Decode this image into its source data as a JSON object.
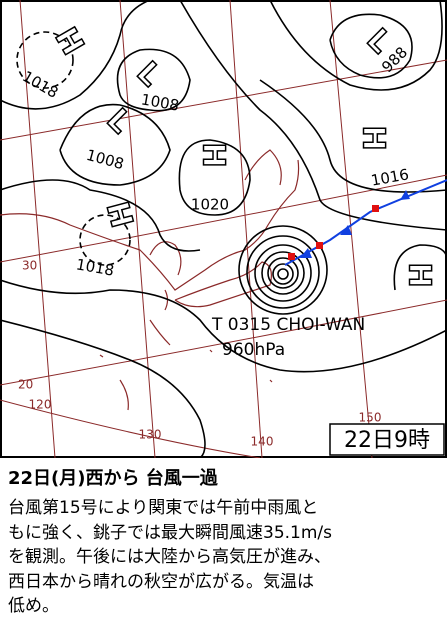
{
  "map": {
    "timestamp": "22日9時",
    "systems": [
      {
        "mark": "H",
        "pressure": "1018"
      },
      {
        "mark": "L",
        "pressure": "1008"
      },
      {
        "mark": "L",
        "pressure": "1008"
      },
      {
        "mark": "H",
        "pressure": "1020"
      },
      {
        "mark": "H",
        "pressure": "1018"
      },
      {
        "mark": "L",
        "pressure": "988"
      },
      {
        "mark": "H",
        "pressure": "1016"
      },
      {
        "mark": "H"
      }
    ],
    "typhoon": {
      "name": "T 0315 CHOI-WAN",
      "pressure": "960hPa"
    },
    "latitudes": [
      "30",
      "20"
    ],
    "longitudes": [
      "120",
      "130",
      "140",
      "150"
    ]
  },
  "article": {
    "title": "22日(月)西から 台風一過",
    "lines": [
      "台風第15号により関東では午前中雨風と",
      "もに強く、銚子では最大瞬間風速35.1m/s",
      "を観測。午後には大陸から高気圧が進み、",
      "西日本から晴れの秋空が広がる。気温は",
      "低め。"
    ]
  }
}
